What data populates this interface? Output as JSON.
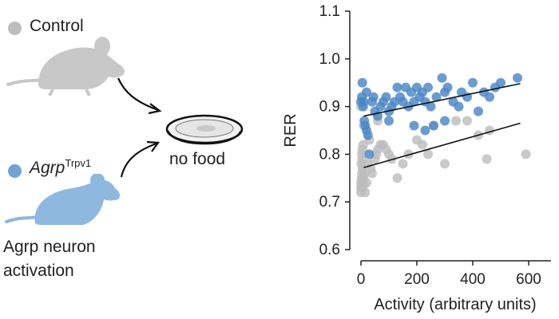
{
  "colors": {
    "control": "#bdbdbd",
    "agrp": "#4a86c6",
    "agrp_mouse": "#8fb8df",
    "fit_line": "#111111"
  },
  "legend": {
    "control_label": "Control",
    "agrp_label": "Agrp",
    "agrp_superscript": "Trpv1"
  },
  "icons": {
    "control_mouse": "mouse-icon",
    "agrp_mouse": "mouse-icon",
    "food_dish": "dish-icon"
  },
  "scene": {
    "food_label": "no food",
    "caption_line1": "Agrp neuron",
    "caption_line2": "activation"
  },
  "chart_data": {
    "type": "scatter",
    "xlabel": "Activity (arbitrary units)",
    "ylabel": "RER",
    "xlim": [
      -40,
      680
    ],
    "ylim": [
      0.6,
      1.1
    ],
    "xticks": [
      0,
      200,
      400,
      600
    ],
    "yticks": [
      0.6,
      0.7,
      0.8,
      0.9,
      1.0,
      1.1
    ],
    "ytick_labels": [
      "0.6",
      "0.7",
      "0.8",
      "0.9",
      "1.0",
      "1.1"
    ],
    "grid": false,
    "series": [
      {
        "name": "Control",
        "color_key": "control",
        "points": [
          [
            0,
            0.72
          ],
          [
            0,
            0.73
          ],
          [
            0,
            0.74
          ],
          [
            2,
            0.75
          ],
          [
            3,
            0.76
          ],
          [
            5,
            0.77
          ],
          [
            1,
            0.78
          ],
          [
            4,
            0.79
          ],
          [
            6,
            0.73
          ],
          [
            8,
            0.74
          ],
          [
            10,
            0.75
          ],
          [
            12,
            0.76
          ],
          [
            15,
            0.72
          ],
          [
            3,
            0.8
          ],
          [
            5,
            0.81
          ],
          [
            20,
            0.74
          ],
          [
            25,
            0.78
          ],
          [
            8,
            0.82
          ],
          [
            30,
            0.83
          ],
          [
            35,
            0.77
          ],
          [
            40,
            0.76
          ],
          [
            50,
            0.79
          ],
          [
            55,
            0.8
          ],
          [
            60,
            0.81
          ],
          [
            70,
            0.82
          ],
          [
            80,
            0.82
          ],
          [
            90,
            0.81
          ],
          [
            100,
            0.8
          ],
          [
            110,
            0.79
          ],
          [
            130,
            0.75
          ],
          [
            150,
            0.78
          ],
          [
            170,
            0.8
          ],
          [
            200,
            0.83
          ],
          [
            220,
            0.82
          ],
          [
            240,
            0.8
          ],
          [
            260,
            0.86
          ],
          [
            300,
            0.78
          ],
          [
            340,
            0.87
          ],
          [
            380,
            0.87
          ],
          [
            420,
            0.84
          ],
          [
            450,
            0.79
          ],
          [
            460,
            0.85
          ],
          [
            590,
            0.8
          ],
          [
            0,
            0.9
          ],
          [
            10,
            0.86
          ],
          [
            60,
            0.87
          ]
        ],
        "fit": [
          [
            10,
            0.772
          ],
          [
            570,
            0.865
          ]
        ]
      },
      {
        "name": "Agrp Trpv1",
        "color_key": "agrp",
        "points": [
          [
            0,
            0.91
          ],
          [
            3,
            0.92
          ],
          [
            5,
            0.95
          ],
          [
            8,
            0.9
          ],
          [
            10,
            0.91
          ],
          [
            12,
            0.87
          ],
          [
            15,
            0.86
          ],
          [
            20,
            0.85
          ],
          [
            25,
            0.84
          ],
          [
            30,
            0.8
          ],
          [
            40,
            0.91
          ],
          [
            45,
            0.92
          ],
          [
            60,
            0.88
          ],
          [
            70,
            0.9
          ],
          [
            80,
            0.91
          ],
          [
            90,
            0.92
          ],
          [
            100,
            0.89
          ],
          [
            110,
            0.9
          ],
          [
            120,
            0.91
          ],
          [
            130,
            0.94
          ],
          [
            140,
            0.92
          ],
          [
            150,
            0.91
          ],
          [
            160,
            0.94
          ],
          [
            170,
            0.9
          ],
          [
            180,
            0.93
          ],
          [
            190,
            0.91
          ],
          [
            200,
            0.94
          ],
          [
            210,
            0.92
          ],
          [
            220,
            0.93
          ],
          [
            230,
            0.91
          ],
          [
            240,
            0.94
          ],
          [
            250,
            0.9
          ],
          [
            260,
            0.86
          ],
          [
            270,
            0.92
          ],
          [
            290,
            0.96
          ],
          [
            300,
            0.93
          ],
          [
            310,
            0.94
          ],
          [
            330,
            0.91
          ],
          [
            350,
            0.9
          ],
          [
            360,
            0.93
          ],
          [
            380,
            0.92
          ],
          [
            400,
            0.95
          ],
          [
            420,
            0.89
          ],
          [
            440,
            0.93
          ],
          [
            460,
            0.92
          ],
          [
            480,
            0.94
          ],
          [
            500,
            0.95
          ],
          [
            560,
            0.96
          ],
          [
            100,
            0.87
          ],
          [
            190,
            0.86
          ],
          [
            230,
            0.85
          ],
          [
            300,
            0.87
          ],
          [
            20,
            0.93
          ],
          [
            50,
            0.89
          ]
        ],
        "fit": [
          [
            10,
            0.88
          ],
          [
            570,
            0.948
          ]
        ]
      }
    ]
  }
}
